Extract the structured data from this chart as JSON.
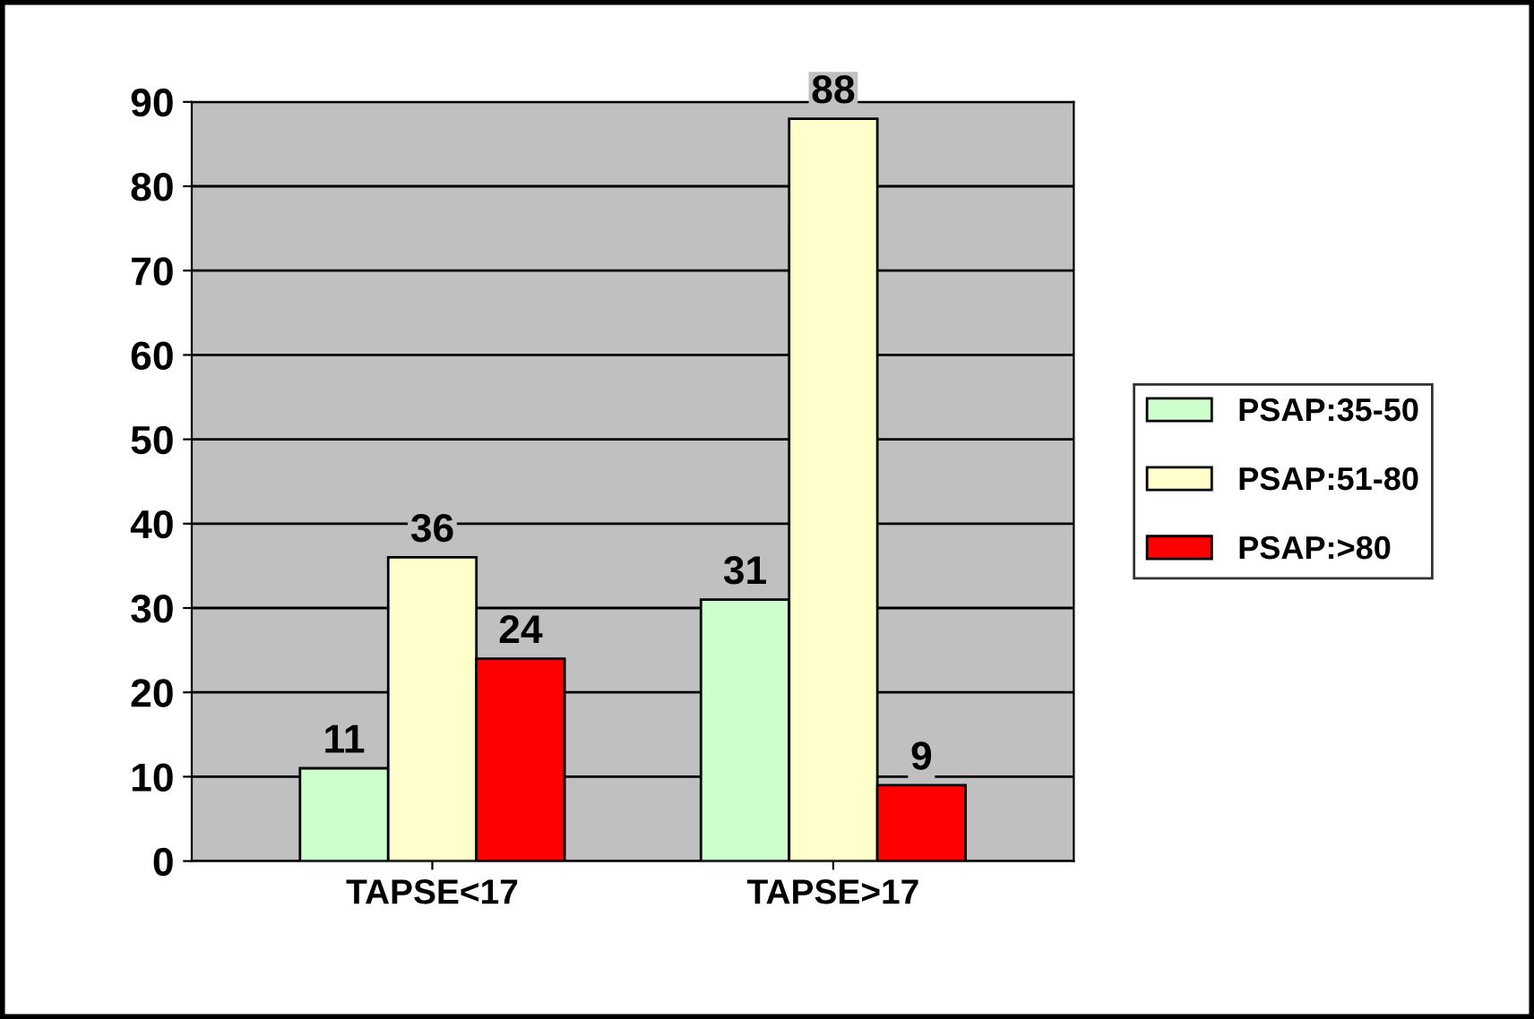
{
  "chart_data": {
    "type": "bar",
    "categories": [
      "TAPSE<17",
      "TAPSE>17"
    ],
    "series": [
      {
        "name": "PSAP:35-50",
        "color": "#ccffcc",
        "values": [
          11,
          31
        ]
      },
      {
        "name": "PSAP:51-80",
        "color": "#ffffcc",
        "values": [
          36,
          88
        ]
      },
      {
        "name": "PSAP:>80",
        "color": "#ff0000",
        "values": [
          24,
          9
        ]
      }
    ],
    "ylim": [
      0,
      90
    ],
    "yticks": [
      0,
      10,
      20,
      30,
      40,
      50,
      60,
      70,
      80,
      90
    ],
    "grid": "y",
    "legend": "right",
    "data_labels": true
  }
}
